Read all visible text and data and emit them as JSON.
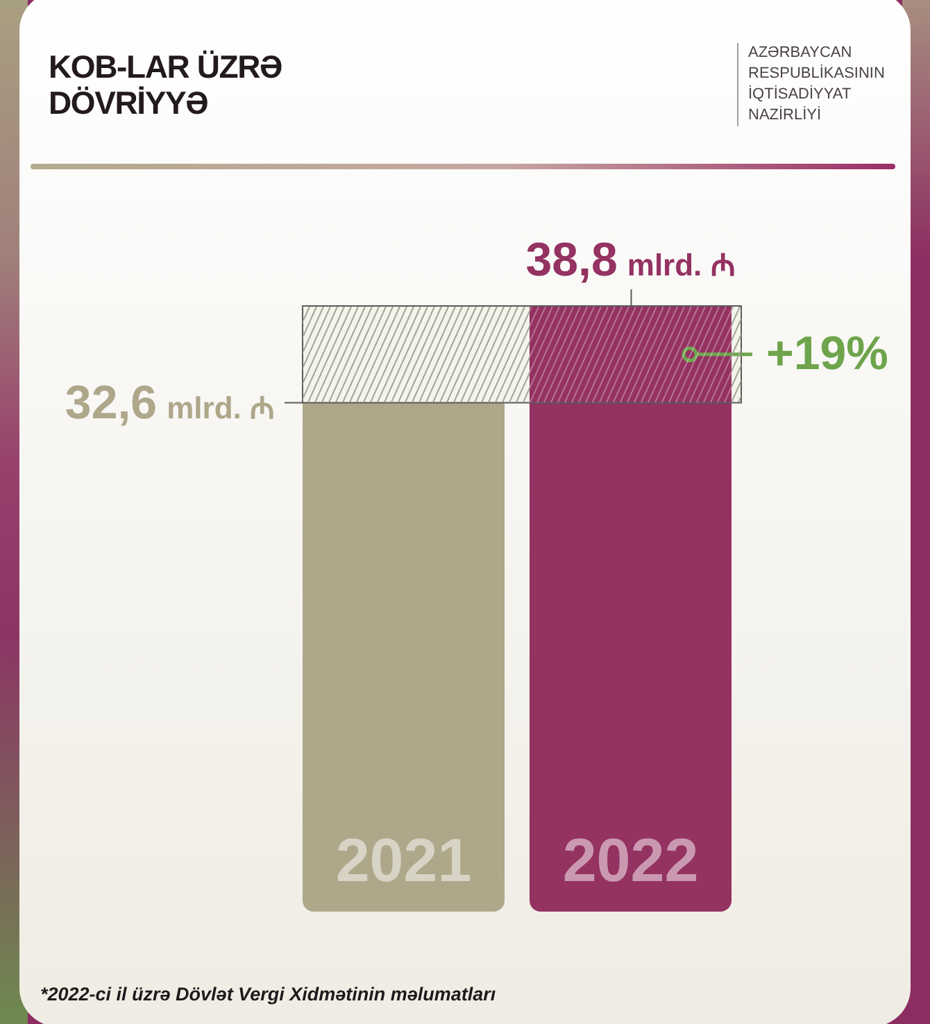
{
  "chart_data": {
    "type": "bar",
    "title": "KOB-LAR ÜZRƏ DÖVRİYYƏ",
    "categories": [
      "2021",
      "2022"
    ],
    "values": [
      32.6,
      38.8
    ],
    "colors": [
      "#aea78a",
      "#943262"
    ],
    "value_labels": [
      "32,6 mlrd. ₼",
      "38,8 mlrd. ₼"
    ],
    "bands": [
      {
        "axis": "y",
        "from": 32.6,
        "to": 38.8,
        "label": "+19%"
      }
    ],
    "tick_labels": "x",
    "annotations": [
      "AZƏRBAYCAN RESPUBLİKASININ İQTİSADİYYAT NAZİRLİYİ",
      "*2022-ci il üzrə Dövlət Vergi Xidmətinin məlumatları"
    ]
  }
}
